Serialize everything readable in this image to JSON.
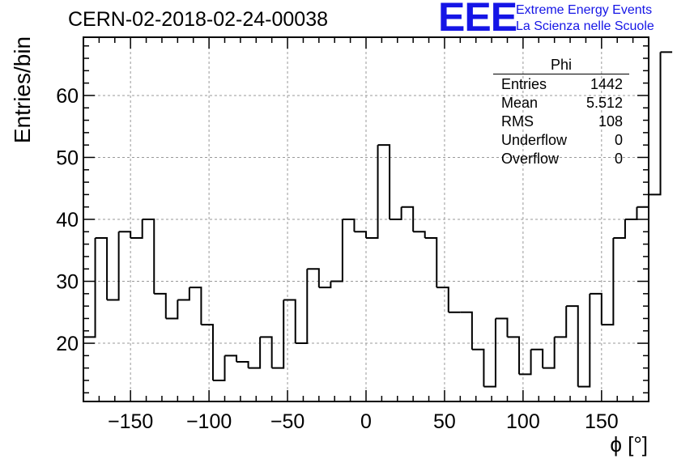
{
  "header": {
    "title": "CERN-02-2018-02-24-00038",
    "logo_text": "EEE",
    "logo_line1": "Extreme Energy Events",
    "logo_line2": "La Scienza nelle Scuole",
    "logo_color": "#1515e6"
  },
  "stats_box": {
    "title": "Phi",
    "rows": [
      {
        "label": "Entries",
        "value": "1442"
      },
      {
        "label": "Mean",
        "value": "5.512"
      },
      {
        "label": "RMS",
        "value": "108"
      },
      {
        "label": "Underflow",
        "value": "0"
      },
      {
        "label": "Overflow",
        "value": "0"
      }
    ]
  },
  "chart_data": {
    "type": "bar",
    "style": "step-histogram",
    "title": "CERN-02-2018-02-24-00038",
    "xlabel": "ϕ [°]",
    "ylabel": "Entries/bin",
    "xlim": [
      -180,
      180
    ],
    "ylim": [
      10.6,
      69.4
    ],
    "bin_width": 7.5,
    "bin_edges_start": -180,
    "values": [
      21,
      37,
      27,
      38,
      37,
      40,
      28,
      24,
      27,
      29,
      23,
      14,
      18,
      17,
      16,
      21,
      16,
      27,
      20,
      32,
      29,
      30,
      40,
      38,
      37,
      52,
      40,
      42,
      38,
      37,
      29,
      25,
      25,
      19,
      13,
      24,
      21,
      15,
      19,
      16,
      21,
      26,
      13,
      28,
      23,
      37,
      40,
      42,
      44,
      67
    ],
    "xticks": [
      -150,
      -100,
      -50,
      0,
      50,
      100,
      150
    ],
    "xtick_labels": [
      "−150",
      "−100",
      "−50",
      "0",
      "50",
      "100",
      "150"
    ],
    "yticks": [
      20,
      30,
      40,
      50,
      60
    ],
    "grid": true,
    "line_color": "#000000",
    "grid_color": "#999999"
  }
}
